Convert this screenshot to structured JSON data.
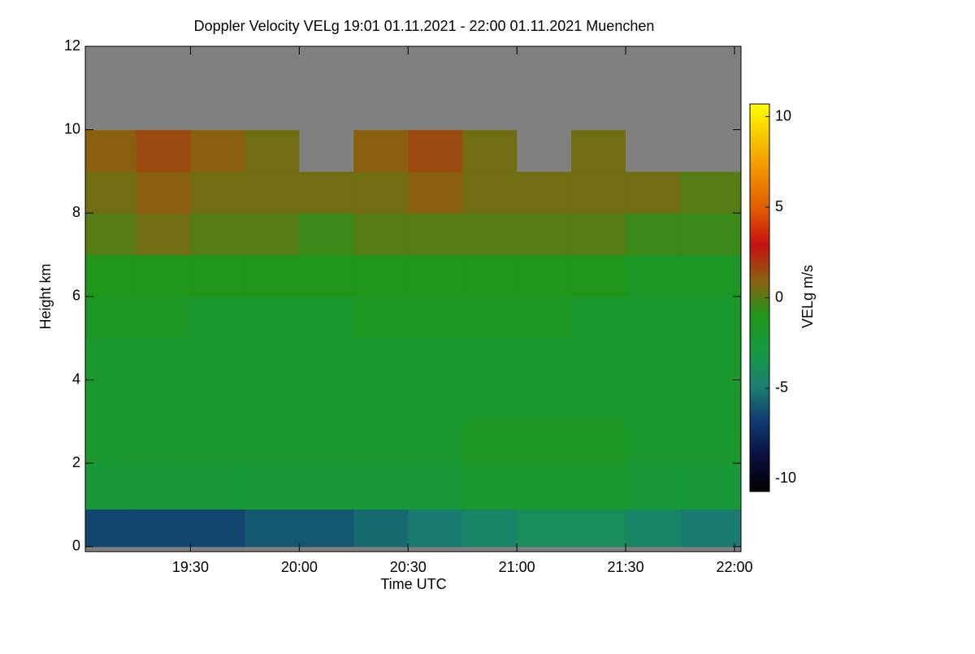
{
  "chart_data": {
    "type": "heatmap",
    "title": "Doppler Velocity VELg   19:01 01.11.2021 - 22:00 01.11.2021 Muenchen",
    "x_label": "Time UTC",
    "y_label": "Height km",
    "colorbar_label": "VELg m/s",
    "xlim": [
      19.0167,
      22.03
    ],
    "xticks": [
      {
        "value": 19.5,
        "label": "19:30"
      },
      {
        "value": 20.0,
        "label": "20:00"
      },
      {
        "value": 20.5,
        "label": "20:30"
      },
      {
        "value": 21.0,
        "label": "21:00"
      },
      {
        "value": 21.5,
        "label": "21:30"
      },
      {
        "value": 22.0,
        "label": "22:00"
      }
    ],
    "ylim": [
      -0.12,
      12
    ],
    "yticks": [
      0,
      2,
      4,
      6,
      8,
      10,
      12
    ],
    "zlim": [
      -10.7,
      10.7
    ],
    "zticks": [
      -10,
      -5,
      0,
      5,
      10
    ],
    "colormap": [
      "#000000",
      "#0b0f40",
      "#103a70",
      "#1a8070",
      "#159a40",
      "#1f951a",
      "#8a6010",
      "#c81010",
      "#e05a00",
      "#f08c00",
      "#f8c400",
      "#ffff00"
    ],
    "missing_color": "#808080",
    "xbins": [
      19.0167,
      19.25,
      19.5,
      19.75,
      20.0,
      20.25,
      20.5,
      20.75,
      21.0,
      21.25,
      21.5,
      21.75,
      22.03
    ],
    "ybins": [
      0,
      0.9,
      2,
      3,
      4,
      5,
      6,
      7,
      8,
      9,
      10,
      11,
      12
    ],
    "z": [
      [
        -6.5,
        -6.5,
        -6.5,
        -6,
        -6,
        -5.5,
        -5,
        -4.5,
        -4,
        -4,
        -4.5,
        -5
      ],
      [
        -2.5,
        -2.5,
        -2.5,
        -2.5,
        -2.5,
        -2.5,
        -2.5,
        -2,
        -2,
        -2,
        -2.5,
        -2.5
      ],
      [
        -2,
        -2,
        -2,
        -2,
        -2,
        -2,
        -2,
        -1.5,
        -1.5,
        -1.5,
        -2,
        -2
      ],
      [
        -2,
        -2,
        -2,
        -2,
        -2,
        -2,
        -2,
        -2,
        -2,
        -2,
        -2,
        -2
      ],
      [
        -2,
        -2,
        -2,
        -2,
        -2,
        -2,
        -2,
        -2,
        -2,
        -2,
        -2,
        -2
      ],
      [
        -1.5,
        -1.5,
        -2,
        -2,
        -2,
        -1.5,
        -1.5,
        -1.5,
        -1.5,
        -2,
        -2,
        -2
      ],
      [
        -1,
        -1,
        -1,
        -1,
        -1,
        -1,
        -1,
        -1,
        -1,
        -1,
        -1.5,
        -1.5
      ],
      [
        0,
        0.5,
        0,
        0,
        -0.5,
        0,
        0,
        0,
        0,
        0,
        -0.5,
        -0.5
      ],
      [
        0.5,
        1,
        0.5,
        0.5,
        0.5,
        0.5,
        1,
        0.5,
        0.5,
        0.5,
        0.5,
        0
      ],
      [
        1,
        1.5,
        1,
        0.5,
        null,
        1,
        1.5,
        0.5,
        null,
        0.5,
        null,
        null
      ],
      [
        null,
        null,
        null,
        null,
        null,
        null,
        null,
        null,
        null,
        null,
        null,
        null
      ],
      [
        null,
        null,
        null,
        null,
        null,
        null,
        null,
        null,
        null,
        null,
        null,
        null
      ]
    ]
  }
}
